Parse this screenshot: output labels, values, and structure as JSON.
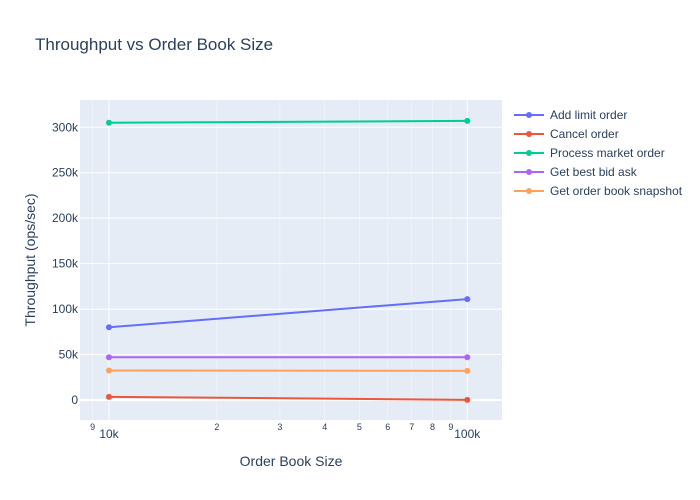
{
  "chart_data": {
    "type": "line",
    "title": "Throughput vs Order Book Size",
    "xlabel": "Order Book Size",
    "ylabel": "Throughput (ops/sec)",
    "x_scale": "log",
    "x": [
      10000,
      100000
    ],
    "xlim": [
      8300,
      125000
    ],
    "ylim": [
      -22000,
      330000
    ],
    "x_major_ticks": [
      {
        "value": 10000,
        "label": "10k"
      },
      {
        "value": 100000,
        "label": "100k"
      }
    ],
    "x_minor_ticks": [
      {
        "value": 9000,
        "label": "9"
      },
      {
        "value": 20000,
        "label": "2"
      },
      {
        "value": 30000,
        "label": "3"
      },
      {
        "value": 40000,
        "label": "4"
      },
      {
        "value": 50000,
        "label": "5"
      },
      {
        "value": 60000,
        "label": "6"
      },
      {
        "value": 70000,
        "label": "7"
      },
      {
        "value": 80000,
        "label": "8"
      },
      {
        "value": 90000,
        "label": "9"
      }
    ],
    "y_ticks": [
      {
        "value": 0,
        "label": "0"
      },
      {
        "value": 50000,
        "label": "50k"
      },
      {
        "value": 100000,
        "label": "100k"
      },
      {
        "value": 150000,
        "label": "150k"
      },
      {
        "value": 200000,
        "label": "200k"
      },
      {
        "value": 250000,
        "label": "250k"
      },
      {
        "value": 300000,
        "label": "300k"
      }
    ],
    "grid": true,
    "legend_position": "right",
    "series": [
      {
        "name": "Add limit order",
        "color": "#636efa",
        "values": [
          80000,
          111000
        ]
      },
      {
        "name": "Cancel order",
        "color": "#ef553b",
        "values": [
          3500,
          200
        ]
      },
      {
        "name": "Process market order",
        "color": "#00cc96",
        "values": [
          305000,
          307000
        ]
      },
      {
        "name": "Get best bid ask",
        "color": "#ab63fa",
        "values": [
          47000,
          47000
        ]
      },
      {
        "name": "Get order book snapshot",
        "color": "#ffa15a",
        "values": [
          32500,
          32000
        ]
      }
    ]
  }
}
